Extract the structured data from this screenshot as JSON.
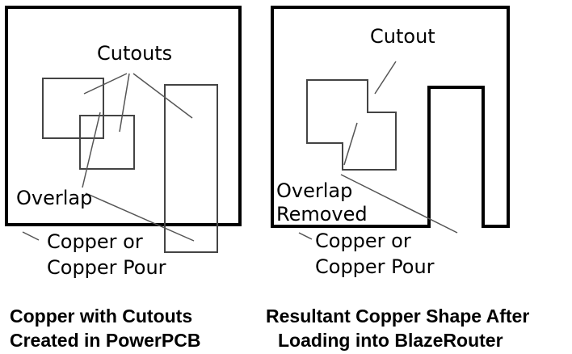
{
  "left_panel": {
    "cutouts_label": "Cutouts",
    "overlap_label": "Overlap",
    "copper_label_line1": "Copper or",
    "copper_label_line2": "Copper Pour",
    "caption_line1": "Copper with Cutouts",
    "caption_line2": "Created in PowerPCB"
  },
  "right_panel": {
    "cutout_label": "Cutout",
    "overlap_label_line1": "Overlap",
    "overlap_label_line2": "Removed",
    "copper_label_line1": "Copper or",
    "copper_label_line2": "Copper Pour",
    "caption_line1": "Resultant Copper Shape After",
    "caption_line2": "Loading into BlazeRouter"
  },
  "colors": {
    "ink": "#000000",
    "leader": "#555555",
    "background": "#ffffff"
  }
}
